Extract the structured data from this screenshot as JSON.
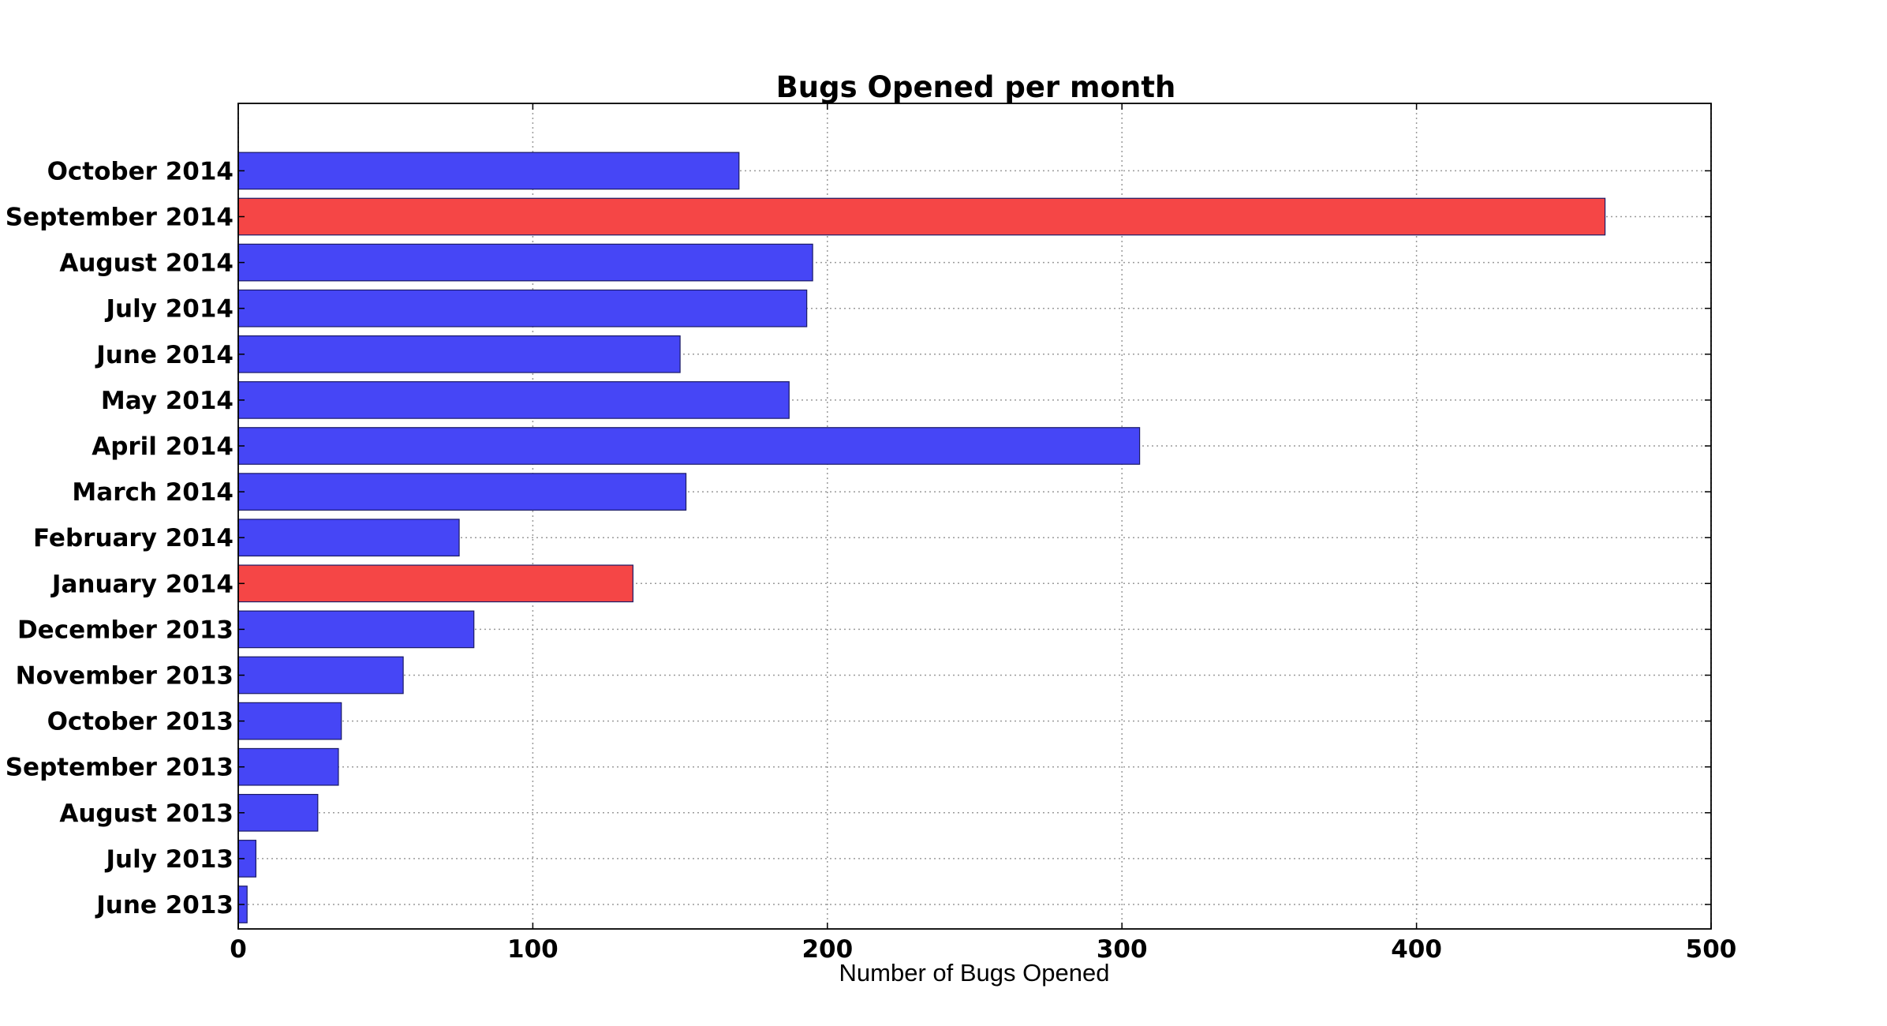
{
  "chart_data": {
    "type": "bar",
    "orientation": "horizontal",
    "title": "Bugs Opened per month",
    "xlabel": "Number of Bugs Opened",
    "ylabel": "",
    "xlim": [
      0,
      500
    ],
    "xticks": [
      "0",
      "100",
      "200",
      "300",
      "400",
      "500"
    ],
    "grid": true,
    "colors": {
      "default": "#4646f6",
      "highlight": "#f54646"
    },
    "categories": [
      "June 2013",
      "July 2013",
      "August 2013",
      "September 2013",
      "October 2013",
      "November 2013",
      "December 2013",
      "January 2014",
      "February 2014",
      "March 2014",
      "April 2014",
      "May 2014",
      "June 2014",
      "July 2014",
      "August 2014",
      "September 2014",
      "October 2014"
    ],
    "values": [
      3,
      6,
      27,
      34,
      35,
      56,
      80,
      134,
      75,
      152,
      306,
      187,
      150,
      193,
      195,
      464,
      170
    ],
    "highlighted": [
      false,
      false,
      false,
      false,
      false,
      false,
      false,
      true,
      false,
      false,
      false,
      false,
      false,
      false,
      false,
      true,
      false
    ]
  }
}
